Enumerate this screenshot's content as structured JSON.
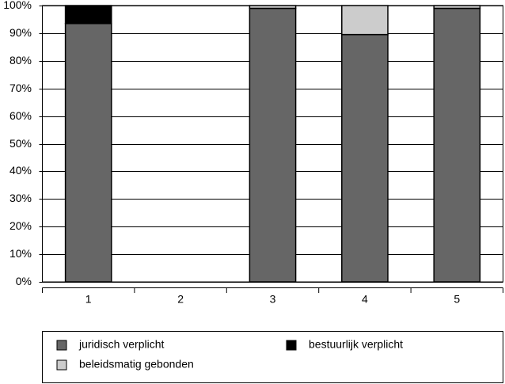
{
  "chart_data": {
    "type": "stacked_bar",
    "categories": [
      "1",
      "2",
      "3",
      "4",
      "5"
    ],
    "series": [
      {
        "name": "juridisch verplicht",
        "color": "#666666",
        "values": [
          93.5,
          null,
          99,
          89.5,
          99
        ]
      },
      {
        "name": "bestuurlijk verplicht",
        "color": "#000000",
        "values": [
          6.5,
          null,
          0,
          0,
          0
        ]
      },
      {
        "name": "beleidsmatig gebonden",
        "color": "#cccccc",
        "values": [
          0,
          null,
          1,
          10.5,
          1
        ]
      }
    ],
    "ylim": [
      0,
      100
    ],
    "yticks": [
      {
        "value": 0,
        "label": "0%"
      },
      {
        "value": 10,
        "label": "10%"
      },
      {
        "value": 20,
        "label": "20%"
      },
      {
        "value": 30,
        "label": "30%"
      },
      {
        "value": 40,
        "label": "40%"
      },
      {
        "value": 50,
        "label": "50%"
      },
      {
        "value": 60,
        "label": "60%"
      },
      {
        "value": 70,
        "label": "70%"
      },
      {
        "value": 80,
        "label": "80%"
      },
      {
        "value": 90,
        "label": "90%"
      },
      {
        "value": 100,
        "label": "100%"
      }
    ],
    "grid": true
  }
}
